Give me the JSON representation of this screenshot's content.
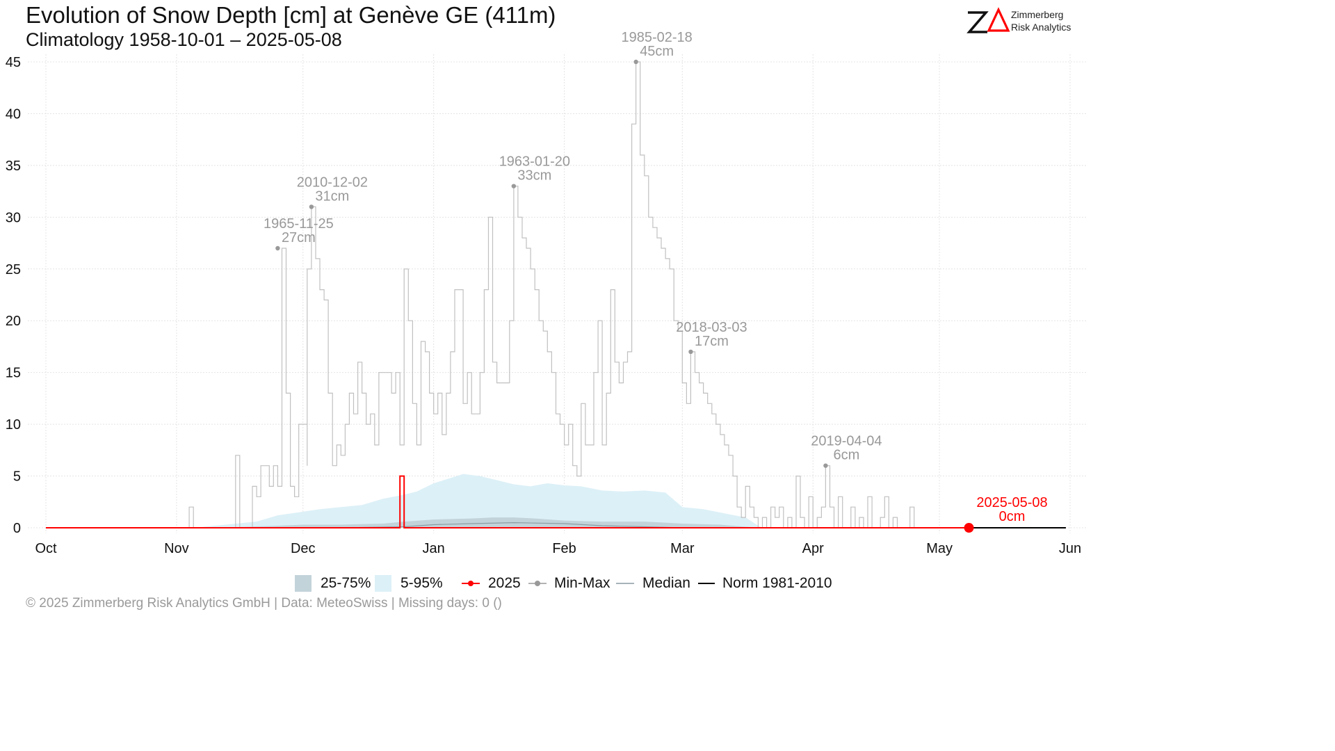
{
  "title": "Evolution of Snow Depth [cm] at Genève  GE (411m)",
  "subtitle": "Climatology 1958-10-01 – 2025-05-08",
  "logo": {
    "line1": "Zimmerberg",
    "line2": "Risk Analytics"
  },
  "footer": "©  2025 Zimmerberg Risk Analytics GmbH | Data: MeteoSwiss | Missing days: 0 ()",
  "legend": {
    "q25_75": "25-75%",
    "q05_95": "5-95%",
    "current": "2025",
    "minmax": "Min-Max",
    "median": "Median",
    "norm": "Norm 1981-2010"
  },
  "colors": {
    "q25_75": "#c3d3da",
    "q05_95": "#dcf0f7",
    "current": "#ff0000",
    "minmax": "#c0c0c0",
    "minmax_point": "#999999",
    "median": "#8a9ca3",
    "norm": "#000000",
    "annotation": "#999999",
    "grid": "#e4e4e4"
  },
  "chart_data": {
    "type": "line",
    "x_axis": {
      "type": "date",
      "start": "10-01",
      "end": "06-01",
      "tick_labels": [
        "Oct",
        "Nov",
        "Dec",
        "Jan",
        "Feb",
        "Mar",
        "Apr",
        "May",
        "Jun"
      ]
    },
    "y_axis": {
      "range": [
        0,
        45
      ],
      "ticks": [
        0,
        5,
        10,
        15,
        20,
        25,
        30,
        35,
        40,
        45
      ]
    },
    "grid": true,
    "legend_position": "bottom",
    "series": {
      "max": {
        "name": "Min-Max",
        "step_points": [
          [
            "10-01",
            0
          ],
          [
            "11-03",
            0
          ],
          [
            "11-04",
            2
          ],
          [
            "11-05",
            0
          ],
          [
            "11-14",
            0
          ],
          [
            "11-15",
            7
          ],
          [
            "11-16",
            0
          ],
          [
            "11-18",
            0
          ],
          [
            "11-19",
            4
          ],
          [
            "11-20",
            3
          ],
          [
            "11-21",
            6
          ],
          [
            "11-23",
            4
          ],
          [
            "11-24",
            6
          ],
          [
            "11-25",
            4
          ],
          [
            "11-26",
            27
          ],
          [
            "11-27",
            13
          ],
          [
            "11-28",
            4
          ],
          [
            "11-29",
            3
          ],
          [
            "11-30",
            10
          ],
          [
            "12-02",
            6
          ],
          [
            "12-02",
            25
          ],
          [
            "12-03",
            31
          ],
          [
            "12-04",
            26
          ],
          [
            "12-05",
            23
          ],
          [
            "12-06",
            22
          ],
          [
            "12-07",
            13
          ],
          [
            "12-08",
            6
          ],
          [
            "12-09",
            8
          ],
          [
            "12-10",
            7
          ],
          [
            "12-11",
            10
          ],
          [
            "12-12",
            13
          ],
          [
            "12-13",
            11
          ],
          [
            "12-14",
            16
          ],
          [
            "12-15",
            13
          ],
          [
            "12-16",
            10
          ],
          [
            "12-17",
            11
          ],
          [
            "12-18",
            8
          ],
          [
            "12-19",
            15
          ],
          [
            "12-22",
            13
          ],
          [
            "12-23",
            15
          ],
          [
            "12-24",
            8
          ],
          [
            "12-25",
            25
          ],
          [
            "12-26",
            20
          ],
          [
            "12-27",
            12
          ],
          [
            "12-28",
            8
          ],
          [
            "12-29",
            18
          ],
          [
            "12-30",
            17
          ],
          [
            "12-31",
            13
          ],
          [
            "01-01",
            11
          ],
          [
            "01-02",
            13
          ],
          [
            "01-03",
            9
          ],
          [
            "01-04",
            13
          ],
          [
            "01-05",
            17
          ],
          [
            "01-06",
            23
          ],
          [
            "01-08",
            12
          ],
          [
            "01-09",
            15
          ],
          [
            "01-10",
            11
          ],
          [
            "01-11",
            11
          ],
          [
            "01-12",
            15
          ],
          [
            "01-13",
            23
          ],
          [
            "01-14",
            30
          ],
          [
            "01-15",
            16
          ],
          [
            "01-16",
            14
          ],
          [
            "01-19",
            20
          ],
          [
            "01-20",
            33
          ],
          [
            "01-21",
            30
          ],
          [
            "01-22",
            28
          ],
          [
            "01-23",
            27
          ],
          [
            "01-24",
            25
          ],
          [
            "01-25",
            23
          ],
          [
            "01-26",
            20
          ],
          [
            "01-27",
            19
          ],
          [
            "01-28",
            17
          ],
          [
            "01-29",
            15
          ],
          [
            "01-30",
            11
          ],
          [
            "01-31",
            10
          ],
          [
            "02-01",
            8
          ],
          [
            "02-02",
            10
          ],
          [
            "02-03",
            6
          ],
          [
            "02-04",
            5
          ],
          [
            "02-05",
            12
          ],
          [
            "02-06",
            8
          ],
          [
            "02-08",
            15
          ],
          [
            "02-09",
            20
          ],
          [
            "02-10",
            8
          ],
          [
            "02-11",
            13
          ],
          [
            "02-12",
            23
          ],
          [
            "02-13",
            16
          ],
          [
            "02-14",
            14
          ],
          [
            "02-15",
            16
          ],
          [
            "02-16",
            17
          ],
          [
            "02-17",
            39
          ],
          [
            "02-18",
            45
          ],
          [
            "02-19",
            36
          ],
          [
            "02-20",
            34
          ],
          [
            "02-21",
            30
          ],
          [
            "02-22",
            29
          ],
          [
            "02-23",
            28
          ],
          [
            "02-24",
            27
          ],
          [
            "02-25",
            26
          ],
          [
            "02-26",
            25
          ],
          [
            "02-27",
            20
          ],
          [
            "02-28",
            19
          ],
          [
            "03-01",
            14
          ],
          [
            "03-02",
            12
          ],
          [
            "03-03",
            17
          ],
          [
            "03-04",
            15
          ],
          [
            "03-05",
            14
          ],
          [
            "03-06",
            13
          ],
          [
            "03-07",
            12
          ],
          [
            "03-08",
            11
          ],
          [
            "03-09",
            10
          ],
          [
            "03-10",
            9
          ],
          [
            "03-11",
            8
          ],
          [
            "03-12",
            7
          ],
          [
            "03-13",
            5
          ],
          [
            "03-14",
            2
          ],
          [
            "03-15",
            1
          ],
          [
            "03-16",
            4
          ],
          [
            "03-17",
            2
          ],
          [
            "03-18",
            1
          ],
          [
            "03-19",
            0
          ],
          [
            "03-20",
            1
          ],
          [
            "03-21",
            0
          ],
          [
            "03-22",
            2
          ],
          [
            "03-23",
            1
          ],
          [
            "03-24",
            2
          ],
          [
            "03-25",
            0
          ],
          [
            "03-26",
            1
          ],
          [
            "03-27",
            0
          ],
          [
            "03-28",
            5
          ],
          [
            "03-29",
            1
          ],
          [
            "03-30",
            0
          ],
          [
            "03-31",
            3
          ],
          [
            "04-01",
            0
          ],
          [
            "04-02",
            1
          ],
          [
            "04-03",
            2
          ],
          [
            "04-04",
            6
          ],
          [
            "04-05",
            2
          ],
          [
            "04-06",
            0
          ],
          [
            "04-07",
            3
          ],
          [
            "04-08",
            0
          ],
          [
            "04-10",
            2
          ],
          [
            "04-11",
            0
          ],
          [
            "04-12",
            1
          ],
          [
            "04-13",
            0
          ],
          [
            "04-14",
            3
          ],
          [
            "04-15",
            0
          ],
          [
            "04-17",
            1
          ],
          [
            "04-18",
            3
          ],
          [
            "04-19",
            0
          ],
          [
            "04-20",
            1
          ],
          [
            "04-21",
            0
          ],
          [
            "04-24",
            2
          ],
          [
            "04-25",
            0
          ],
          [
            "05-31",
            0
          ]
        ]
      },
      "q05_95": {
        "name": "5-95%",
        "points": [
          [
            "11-05",
            0
          ],
          [
            "11-20",
            0.6
          ],
          [
            "11-25",
            1.2
          ],
          [
            "11-30",
            1.5
          ],
          [
            "12-05",
            1.8
          ],
          [
            "12-10",
            2.0
          ],
          [
            "12-15",
            2.2
          ],
          [
            "12-20",
            2.8
          ],
          [
            "12-25",
            3.2
          ],
          [
            "12-28",
            3.5
          ],
          [
            "01-01",
            4.3
          ],
          [
            "01-05",
            4.8
          ],
          [
            "01-08",
            5.2
          ],
          [
            "01-12",
            5.0
          ],
          [
            "01-16",
            4.6
          ],
          [
            "01-20",
            4.2
          ],
          [
            "01-24",
            4.0
          ],
          [
            "01-28",
            4.3
          ],
          [
            "02-01",
            4.1
          ],
          [
            "02-05",
            4.0
          ],
          [
            "02-10",
            3.6
          ],
          [
            "02-15",
            3.5
          ],
          [
            "02-20",
            3.6
          ],
          [
            "02-25",
            3.4
          ],
          [
            "03-01",
            2.0
          ],
          [
            "03-06",
            1.8
          ],
          [
            "03-11",
            1.4
          ],
          [
            "03-16",
            1.0
          ],
          [
            "03-19",
            0.2
          ],
          [
            "03-20",
            0
          ]
        ]
      },
      "q25_75": {
        "name": "25-75%",
        "points": [
          [
            "11-10",
            0
          ],
          [
            "11-25",
            0.2
          ],
          [
            "12-01",
            0.3
          ],
          [
            "12-10",
            0.3
          ],
          [
            "12-20",
            0.4
          ],
          [
            "12-25",
            0.6
          ],
          [
            "01-01",
            0.8
          ],
          [
            "01-10",
            0.9
          ],
          [
            "01-15",
            1.0
          ],
          [
            "01-20",
            1.0
          ],
          [
            "01-25",
            0.9
          ],
          [
            "02-01",
            0.7
          ],
          [
            "02-10",
            0.6
          ],
          [
            "02-20",
            0.6
          ],
          [
            "02-25",
            0.5
          ],
          [
            "03-01",
            0.4
          ],
          [
            "03-10",
            0.3
          ],
          [
            "03-16",
            0.1
          ],
          [
            "03-20",
            0
          ]
        ]
      },
      "median": {
        "name": "Median",
        "points": [
          [
            "12-10",
            0
          ],
          [
            "12-25",
            0.1
          ],
          [
            "01-01",
            0.3
          ],
          [
            "01-10",
            0.4
          ],
          [
            "01-20",
            0.5
          ],
          [
            "02-01",
            0.4
          ],
          [
            "02-10",
            0.2
          ],
          [
            "02-20",
            0.1
          ],
          [
            "03-01",
            0
          ]
        ]
      },
      "current": {
        "name": "2025",
        "step_points": [
          [
            "10-01",
            0
          ],
          [
            "12-24",
            0
          ],
          [
            "12-24",
            5
          ],
          [
            "12-25",
            5
          ],
          [
            "12-25",
            0
          ],
          [
            "05-08",
            0
          ]
        ],
        "last_point": [
          "05-08",
          0
        ]
      },
      "norm": {
        "name": "Norm 1981-2010",
        "points": [
          [
            "05-08",
            0
          ],
          [
            "05-31",
            0
          ]
        ]
      }
    },
    "annotations": [
      {
        "x": "11-25",
        "y": 27,
        "date": "1965-11-25",
        "value": "27cm"
      },
      {
        "x": "12-03",
        "y": 31,
        "date": "2010-12-02",
        "value": "31cm"
      },
      {
        "x": "01-20",
        "y": 33,
        "date": "1963-01-20",
        "value": "33cm"
      },
      {
        "x": "02-18",
        "y": 45,
        "date": "1985-02-18",
        "value": "45cm"
      },
      {
        "x": "03-03",
        "y": 17,
        "date": "2018-03-03",
        "value": "17cm"
      },
      {
        "x": "04-04",
        "y": 6,
        "date": "2019-04-04",
        "value": "6cm"
      }
    ],
    "current_annotation": {
      "x": "05-08",
      "y": 0,
      "date": "2025-05-08",
      "value": "0cm"
    }
  }
}
